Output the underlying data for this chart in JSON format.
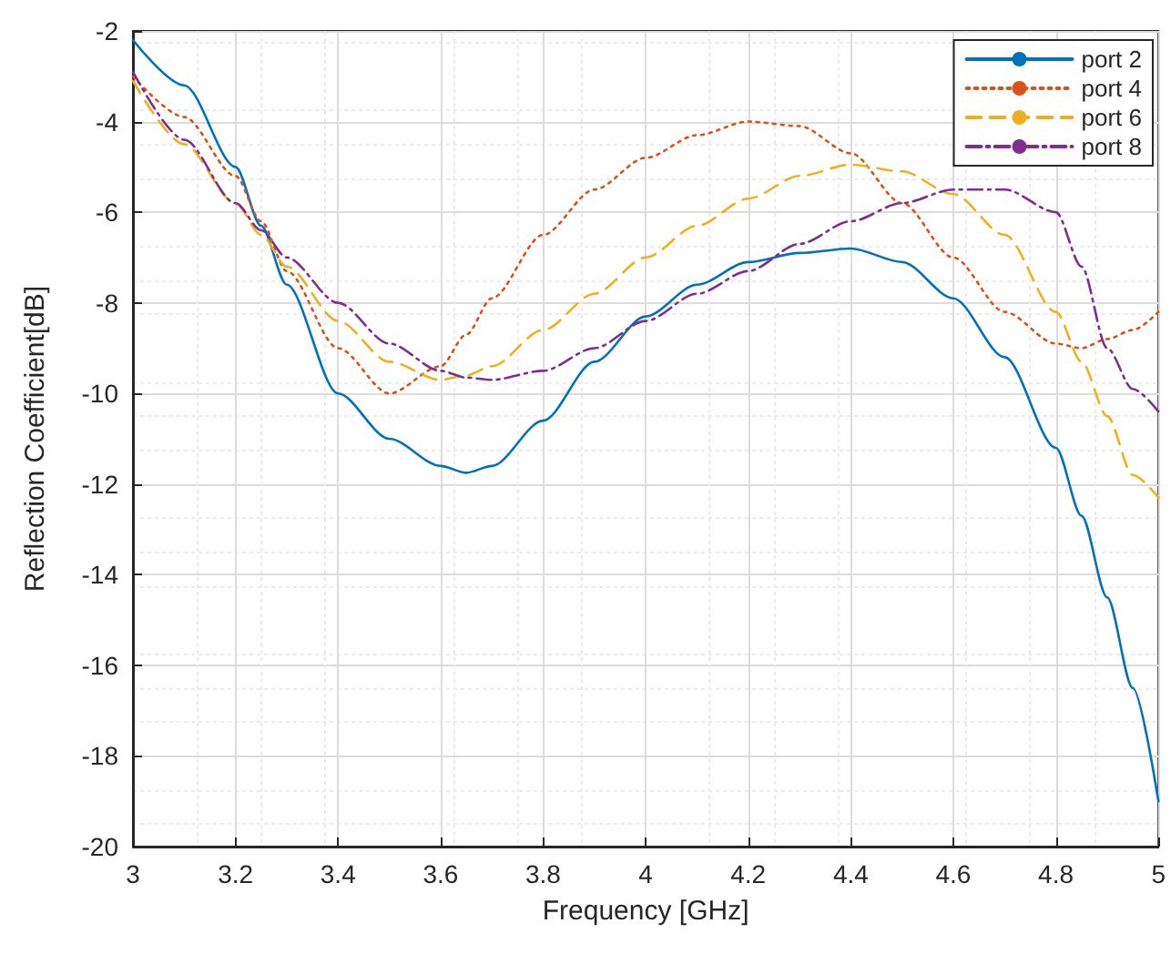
{
  "chart_data": {
    "type": "line",
    "xlabel": "Frequency [GHz]",
    "ylabel": "Reflection Coefficient[dB]",
    "x": [
      3,
      3.1,
      3.2,
      3.25,
      3.3,
      3.4,
      3.5,
      3.6,
      3.65,
      3.7,
      3.8,
      3.9,
      4,
      4.1,
      4.2,
      4.3,
      4.4,
      4.5,
      4.6,
      4.7,
      4.8,
      4.85,
      4.9,
      4.95,
      5
    ],
    "series": [
      {
        "name": "port 2",
        "color": "#0072bd",
        "line_style": "solid",
        "values": [
          -2.2,
          -3.2,
          -5.0,
          -6.3,
          -7.6,
          -10.0,
          -11.0,
          -11.6,
          -11.75,
          -11.6,
          -10.6,
          -9.3,
          -8.3,
          -7.6,
          -7.1,
          -6.9,
          -6.8,
          -7.1,
          -7.9,
          -9.2,
          -11.2,
          -12.7,
          -14.5,
          -16.5,
          -19.0
        ]
      },
      {
        "name": "port 4",
        "color": "#d95319",
        "line_style": "dotted",
        "values": [
          -3.0,
          -3.9,
          -5.2,
          -6.2,
          -7.3,
          -9.0,
          -10.0,
          -9.4,
          -8.7,
          -7.9,
          -6.5,
          -5.5,
          -4.8,
          -4.3,
          -4.0,
          -4.1,
          -4.7,
          -5.8,
          -7.0,
          -8.2,
          -8.9,
          -9.0,
          -8.8,
          -8.6,
          -8.2
        ]
      },
      {
        "name": "port 6",
        "color": "#edb120",
        "line_style": "dashed",
        "values": [
          -3.1,
          -4.5,
          -5.8,
          -6.5,
          -7.2,
          -8.4,
          -9.3,
          -9.7,
          -9.6,
          -9.4,
          -8.6,
          -7.8,
          -7.0,
          -6.3,
          -5.7,
          -5.2,
          -4.95,
          -5.1,
          -5.6,
          -6.5,
          -8.2,
          -9.3,
          -10.5,
          -11.8,
          -12.3
        ]
      },
      {
        "name": "port 8",
        "color": "#7e2f8e",
        "line_style": "dashdot",
        "values": [
          -2.9,
          -4.4,
          -5.8,
          -6.4,
          -7.0,
          -8.0,
          -8.9,
          -9.5,
          -9.65,
          -9.7,
          -9.5,
          -9.0,
          -8.4,
          -7.8,
          -7.3,
          -6.7,
          -6.2,
          -5.8,
          -5.5,
          -5.5,
          -6.0,
          -7.2,
          -9.0,
          -9.9,
          -10.4
        ]
      }
    ],
    "xlim": [
      3,
      5
    ],
    "xticks": [
      3,
      3.2,
      3.4,
      3.6,
      3.8,
      4,
      4.2,
      4.4,
      4.6,
      4.8,
      5
    ],
    "ylim": [
      -20,
      -2
    ],
    "yticks": [
      -20,
      -18,
      -16,
      -14,
      -12,
      -10,
      -8,
      -6,
      -4,
      -2
    ],
    "grid": true,
    "legend": "top right",
    "marker": "none"
  }
}
